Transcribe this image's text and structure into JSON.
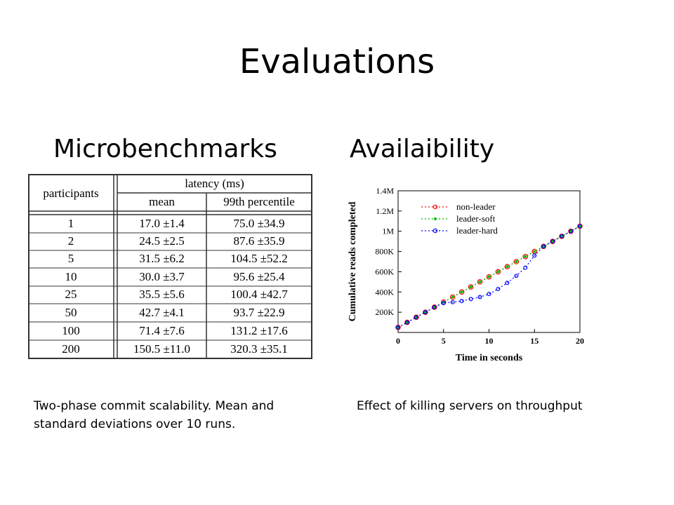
{
  "slide": {
    "title": "Evaluations",
    "left_heading": "Microbenchmarks",
    "right_heading": "Availaibility",
    "left_caption": "Two-phase commit scalability. Mean and standard deviations over 10 runs.",
    "right_caption": "Effect of killing servers on throughput"
  },
  "table": {
    "header_group": "latency (ms)",
    "col_participants": "participants",
    "col_mean": "mean",
    "col_p99": "99th percentile",
    "rows": [
      {
        "participants": "1",
        "mean": "17.0 ±1.4",
        "p99": "75.0 ±34.9"
      },
      {
        "participants": "2",
        "mean": "24.5 ±2.5",
        "p99": "87.6 ±35.9"
      },
      {
        "participants": "5",
        "mean": "31.5 ±6.2",
        "p99": "104.5 ±52.2"
      },
      {
        "participants": "10",
        "mean": "30.0 ±3.7",
        "p99": "95.6 ±25.4"
      },
      {
        "participants": "25",
        "mean": "35.5 ±5.6",
        "p99": "100.4 ±42.7"
      },
      {
        "participants": "50",
        "mean": "42.7 ±4.1",
        "p99": "93.7 ±22.9"
      },
      {
        "participants": "100",
        "mean": "71.4 ±7.6",
        "p99": "131.2 ±17.6"
      },
      {
        "participants": "200",
        "mean": "150.5 ±11.0",
        "p99": "320.3 ±35.1"
      }
    ]
  },
  "chart_data": {
    "type": "line",
    "xlabel": "Time in seconds",
    "ylabel": "Cumulative reads completed",
    "xlim": [
      0,
      20
    ],
    "ylim": [
      0,
      1400000
    ],
    "x_ticks": [
      0,
      5,
      10,
      15,
      20
    ],
    "y_ticks": [
      {
        "value": 200000,
        "label": "200K"
      },
      {
        "value": 400000,
        "label": "400K"
      },
      {
        "value": 600000,
        "label": "600K"
      },
      {
        "value": 800000,
        "label": "800K"
      },
      {
        "value": 1000000,
        "label": "1M"
      },
      {
        "value": 1200000,
        "label": "1.2M"
      },
      {
        "value": 1400000,
        "label": "1.4M"
      }
    ],
    "legend_position": "top-left",
    "x": [
      0,
      1,
      2,
      3,
      4,
      5,
      6,
      7,
      8,
      9,
      10,
      11,
      12,
      13,
      14,
      15,
      16,
      17,
      18,
      19,
      20
    ],
    "series": [
      {
        "name": "non-leader",
        "color": "#ff0000",
        "marker": "circle",
        "values": [
          50000,
          100000,
          150000,
          200000,
          250000,
          300000,
          350000,
          400000,
          450000,
          500000,
          550000,
          600000,
          650000,
          700000,
          750000,
          800000,
          850000,
          900000,
          950000,
          1000000,
          1050000
        ]
      },
      {
        "name": "leader-soft",
        "color": "#00bb00",
        "marker": "dot",
        "values": [
          50000,
          100000,
          150000,
          200000,
          250000,
          300000,
          350000,
          400000,
          450000,
          500000,
          550000,
          600000,
          650000,
          700000,
          750000,
          800000,
          850000,
          900000,
          950000,
          1000000,
          1050000
        ]
      },
      {
        "name": "leader-hard",
        "color": "#0000ff",
        "marker": "circle",
        "values": [
          50000,
          100000,
          150000,
          200000,
          250000,
          290000,
          300000,
          310000,
          330000,
          350000,
          380000,
          430000,
          490000,
          560000,
          640000,
          760000,
          850000,
          900000,
          950000,
          1000000,
          1050000
        ]
      }
    ]
  }
}
